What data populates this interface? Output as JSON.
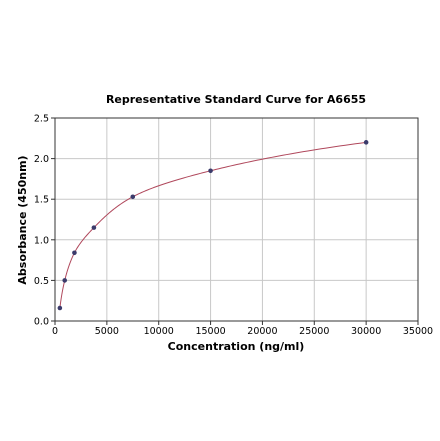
{
  "chart_data": {
    "type": "scatter",
    "title": "Representative Standard Curve for A6655",
    "xlabel": "Concentration (ng/ml)",
    "ylabel": "Absorbance (450nm)",
    "xlim": [
      0,
      35000
    ],
    "ylim": [
      0,
      2.5
    ],
    "x_ticks": [
      0,
      5000,
      10000,
      15000,
      20000,
      25000,
      30000,
      35000
    ],
    "x_tick_labels": [
      "0",
      "5000",
      "10000",
      "15000",
      "20000",
      "25000",
      "30000",
      "35000"
    ],
    "y_ticks": [
      0,
      0.5,
      1.0,
      1.5,
      2.0,
      2.5
    ],
    "y_tick_labels": [
      "0.0",
      "0.5",
      "1.0",
      "1.5",
      "2.0",
      "2.5"
    ],
    "grid": true,
    "series": [
      {
        "points": [
          {
            "x": 469,
            "y": 0.16
          },
          {
            "x": 938,
            "y": 0.5
          },
          {
            "x": 1875,
            "y": 0.84
          },
          {
            "x": 3750,
            "y": 1.15
          },
          {
            "x": 7500,
            "y": 1.53
          },
          {
            "x": 15000,
            "y": 1.85
          },
          {
            "x": 30000,
            "y": 2.2
          }
        ],
        "marker_color": "#3b3b6b",
        "curve_color": "#b0485c"
      }
    ]
  }
}
